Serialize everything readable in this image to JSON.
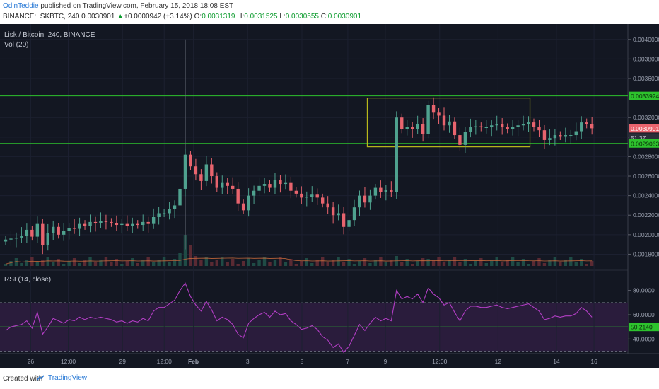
{
  "header": {
    "author": "OdinTeddie",
    "published_text": " published on TradingView.com, February 15, 2018 18:08 EST",
    "symbol": "BINANCE:LSKBTC, 240",
    "last": "0.0030901",
    "change": "+0.0000942 (+3.14%)",
    "o_label": "O:",
    "o": "0.0031319",
    "h_label": "H:",
    "h": "0.0031525",
    "l_label": "L:",
    "l": "0.0030555",
    "c_label": "C:",
    "c": "0.0030901"
  },
  "price_pane": {
    "legend_title": "Lisk / Bitcoin, 240, BINANCE",
    "legend_vol": "Vol (20)"
  },
  "rsi_pane": {
    "legend": "RSI (14, close)"
  },
  "price_tags": {
    "resistance": "0.0033924",
    "current": "0.0030901",
    "timer": "51:37",
    "support": "0.0029063"
  },
  "footer": {
    "created_with": "Created with",
    "brand": "TradingView"
  },
  "colors": {
    "up": "#4fa28f",
    "down": "#e8646e",
    "hline": "#2dc22d",
    "box": "#b8b81c",
    "rsi": "#b23ec4",
    "rsi_band": "#2a1c3c",
    "bg": "#131722",
    "vol_ma": "#c0663a"
  },
  "chart_data": [
    {
      "type": "candlestick",
      "title": "Lisk / Bitcoin, 240, BINANCE",
      "ylim": [
        0.00168,
        0.0041
      ],
      "yticks": [
        "0.0018000",
        "0.0020000",
        "0.0022000",
        "0.0024000",
        "0.0026000",
        "0.0028000",
        "0.0030000",
        "0.0032000",
        "0.0034000",
        "0.0036000",
        "0.0038000",
        "0.0040000"
      ],
      "xticks": [
        "26",
        "12:00",
        "29",
        "12:00",
        "Feb",
        "3",
        "5",
        "7",
        "9",
        "12:00",
        "12",
        "14",
        "16"
      ],
      "horizontal_lines": [
        0.0033924,
        0.0029063
      ],
      "box": {
        "y_top": 0.0034,
        "y_bottom": 0.0029,
        "x_from_candle": 69,
        "x_to_candle": 99
      },
      "closes": [
        0.00195,
        0.00196,
        0.00197,
        0.00199,
        0.00205,
        0.00198,
        0.00211,
        0.00189,
        0.00202,
        0.00208,
        0.002,
        0.00204,
        0.00207,
        0.00206,
        0.00211,
        0.00209,
        0.00213,
        0.00212,
        0.00214,
        0.00213,
        0.00212,
        0.0021,
        0.00211,
        0.00209,
        0.00211,
        0.0021,
        0.00213,
        0.00211,
        0.00218,
        0.00222,
        0.00222,
        0.00226,
        0.0023,
        0.00247,
        0.00282,
        0.0027,
        0.00262,
        0.00255,
        0.00272,
        0.0026,
        0.00248,
        0.00253,
        0.0025,
        0.00247,
        0.00232,
        0.00225,
        0.0024,
        0.00245,
        0.0025,
        0.00252,
        0.00248,
        0.00256,
        0.00252,
        0.00253,
        0.00245,
        0.00242,
        0.00238,
        0.00239,
        0.00241,
        0.00238,
        0.00232,
        0.00228,
        0.0022,
        0.00222,
        0.00208,
        0.00215,
        0.00228,
        0.0024,
        0.00233,
        0.0024,
        0.00248,
        0.00244,
        0.00246,
        0.00244,
        0.0032,
        0.00308,
        0.0031,
        0.00308,
        0.00313,
        0.00303,
        0.00333,
        0.00325,
        0.00322,
        0.00312,
        0.00316,
        0.00302,
        0.00292,
        0.00305,
        0.0031,
        0.00311,
        0.0031,
        0.0031,
        0.00312,
        0.00313,
        0.0031,
        0.00308,
        0.0031,
        0.00312,
        0.00313,
        0.00315,
        0.0031,
        0.00307,
        0.00297,
        0.00299,
        0.00302,
        0.00301,
        0.00302,
        0.00302,
        0.00306,
        0.00315,
        0.00313,
        0.00309
      ],
      "volume_series": "Vol (20)"
    },
    {
      "type": "line",
      "title": "RSI (14, close)",
      "ylim": [
        28,
        92
      ],
      "yticks": [
        "40.0000",
        "60.0000",
        "80.0000"
      ],
      "levels": [
        70,
        50,
        30
      ],
      "current_value": "50.2140",
      "values": [
        47,
        50,
        51,
        52,
        55,
        49,
        62,
        44,
        50,
        57,
        55,
        53,
        56,
        55,
        58,
        56,
        58,
        57,
        58,
        57,
        56,
        54,
        55,
        53,
        55,
        54,
        57,
        55,
        63,
        66,
        66,
        69,
        72,
        80,
        86,
        75,
        68,
        63,
        71,
        64,
        55,
        58,
        56,
        52,
        44,
        41,
        53,
        57,
        60,
        62,
        58,
        63,
        60,
        61,
        55,
        52,
        48,
        49,
        51,
        48,
        42,
        39,
        33,
        36,
        29,
        34,
        43,
        52,
        47,
        53,
        58,
        55,
        57,
        55,
        80,
        73,
        75,
        73,
        77,
        70,
        82,
        77,
        74,
        68,
        70,
        62,
        55,
        63,
        67,
        67,
        66,
        66,
        67,
        68,
        66,
        65,
        66,
        67,
        68,
        69,
        66,
        63,
        56,
        57,
        59,
        58,
        59,
        59,
        61,
        66,
        63,
        58
      ]
    }
  ]
}
